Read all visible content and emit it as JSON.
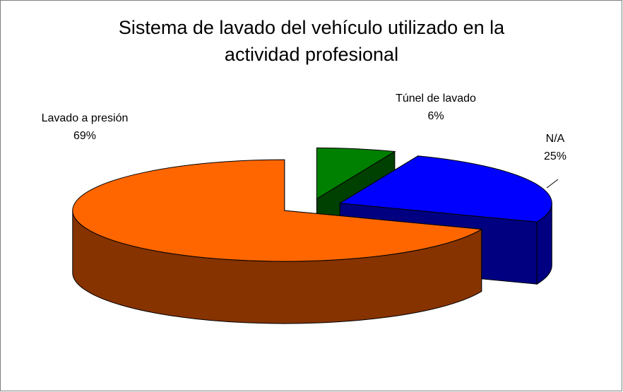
{
  "chart_data": {
    "type": "pie3d",
    "title": "Sistema de lavado del vehículo utilizado en la actividad profesional",
    "categories": [
      "Túnel de lavado",
      "N/A",
      "Lavado a presión"
    ],
    "values": [
      6,
      25,
      69
    ],
    "value_labels": [
      "6%",
      "25%",
      "69%"
    ],
    "colors": [
      "#008000",
      "#0000ff",
      "#ff6600"
    ],
    "side_colors": [
      "#004000",
      "#000080",
      "#863300"
    ]
  }
}
